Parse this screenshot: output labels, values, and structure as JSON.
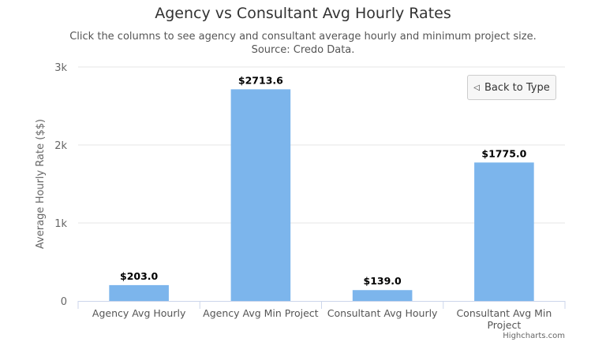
{
  "chart_data": {
    "type": "bar",
    "title": "Agency vs Consultant Avg Hourly Rates",
    "subtitle_lines": [
      "Click the columns to see agency and consultant average hourly and minimum project size.",
      "Source: Credo Data."
    ],
    "categories": [
      "Agency Avg Hourly",
      "Agency Avg Min Project",
      "Consultant Avg Hourly",
      "Consultant Avg Min Project"
    ],
    "values": [
      203.0,
      2713.6,
      139.0,
      1775.0
    ],
    "data_labels": [
      "$203.0",
      "$2713.6",
      "$139.0",
      "$1775.0"
    ],
    "ylabel": "Average Hourly Rate ($$)",
    "ylim": [
      0,
      3000
    ],
    "y_ticks": [
      0,
      1000,
      2000,
      3000
    ],
    "y_tick_labels": [
      "0",
      "1k",
      "2k",
      "3k"
    ],
    "grid": true,
    "bar_color": "#7cb5ec"
  },
  "button": {
    "label": "Back to Type",
    "icon": "triangle-left-icon"
  },
  "credits": "Highcharts.com"
}
